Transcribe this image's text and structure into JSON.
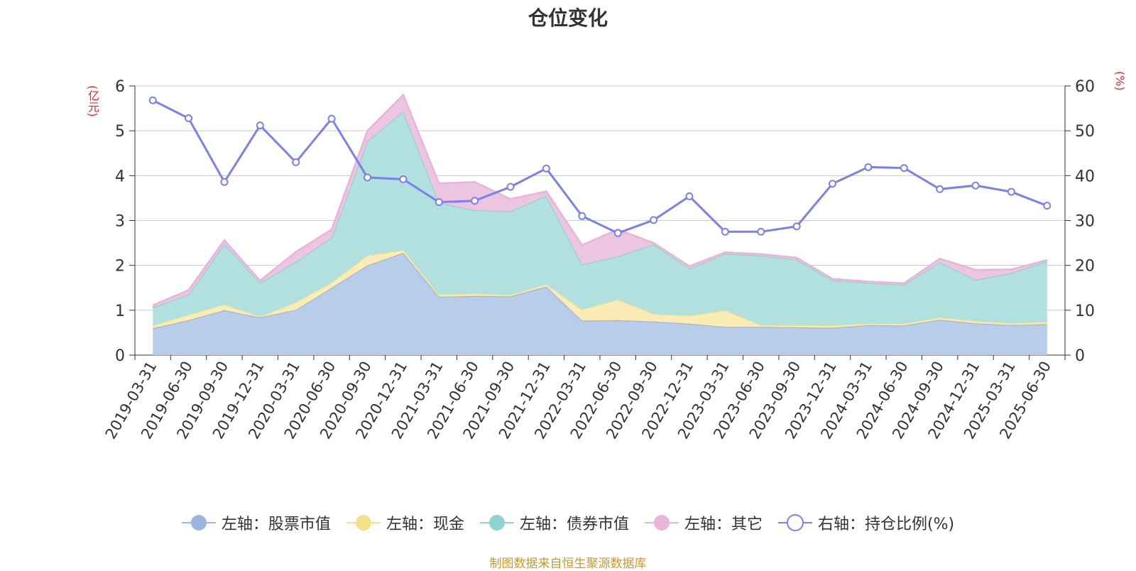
{
  "title": "仓位变化",
  "left_unit": "(亿元)",
  "right_unit": "(%)",
  "source": "制图数据来自恒生聚源数据库",
  "chart_data": {
    "type": "area",
    "categories": [
      "2019-03-31",
      "2019-06-30",
      "2019-09-30",
      "2019-12-31",
      "2020-03-31",
      "2020-06-30",
      "2020-09-30",
      "2020-12-31",
      "2021-03-31",
      "2021-06-30",
      "2021-09-30",
      "2021-12-31",
      "2022-03-31",
      "2022-06-30",
      "2022-09-30",
      "2022-12-31",
      "2023-03-31",
      "2023-06-30",
      "2023-09-30",
      "2023-12-31",
      "2024-03-31",
      "2024-06-30",
      "2024-09-30",
      "2024-12-31",
      "2025-03-31",
      "2025-06-30"
    ],
    "y_left": {
      "ylim": [
        0,
        6
      ],
      "ticks": [
        0,
        1,
        2,
        3,
        4,
        5,
        6
      ]
    },
    "y_right": {
      "ylim": [
        0,
        60
      ],
      "ticks": [
        0,
        10,
        20,
        30,
        40,
        50,
        60
      ]
    },
    "grid": true,
    "legend_position": "bottom",
    "series": [
      {
        "name": "左轴：股票市值",
        "axis": "left",
        "stacked": true,
        "color": "#9db6e0",
        "fill": "#b8cdea",
        "values": [
          0.6,
          0.78,
          1.0,
          0.84,
          1.01,
          1.5,
          2.0,
          2.28,
          1.3,
          1.32,
          1.31,
          1.53,
          0.77,
          0.78,
          0.75,
          0.7,
          0.63,
          0.63,
          0.62,
          0.61,
          0.67,
          0.66,
          0.79,
          0.71,
          0.67,
          0.69
        ]
      },
      {
        "name": "左轴：现金",
        "axis": "left",
        "stacked": true,
        "color": "#f5e08a",
        "fill": "#fbecb6",
        "values": [
          0.06,
          0.12,
          0.13,
          0.02,
          0.17,
          0.12,
          0.22,
          0.06,
          0.05,
          0.05,
          0.03,
          0.05,
          0.25,
          0.46,
          0.17,
          0.18,
          0.37,
          0.04,
          0.05,
          0.05,
          0.04,
          0.04,
          0.05,
          0.05,
          0.04,
          0.05
        ]
      },
      {
        "name": "左轴：债券市值",
        "axis": "left",
        "stacked": true,
        "color": "#8fd4d0",
        "fill": "#b2e0de",
        "values": [
          0.4,
          0.45,
          1.35,
          0.75,
          0.9,
          1.0,
          2.55,
          3.1,
          2.05,
          1.86,
          1.87,
          1.97,
          1.0,
          0.96,
          1.55,
          1.05,
          1.26,
          1.55,
          1.46,
          1.01,
          0.9,
          0.87,
          1.23,
          0.92,
          1.12,
          1.35
        ]
      },
      {
        "name": "左轴：其它",
        "axis": "left",
        "stacked": true,
        "color": "#e8b4d8",
        "fill": "#ecc6e1",
        "values": [
          0.05,
          0.1,
          0.08,
          0.05,
          0.22,
          0.18,
          0.23,
          0.36,
          0.43,
          0.63,
          0.27,
          0.1,
          0.43,
          0.6,
          0.03,
          0.05,
          0.03,
          0.03,
          0.04,
          0.03,
          0.03,
          0.03,
          0.08,
          0.22,
          0.08,
          0.03
        ]
      },
      {
        "name": "右轴：持仓比例(%)",
        "axis": "right",
        "type": "line",
        "color": "#7b7ff2",
        "values": [
          56.8,
          52.8,
          38.6,
          51.2,
          43.0,
          52.7,
          39.6,
          39.2,
          34.1,
          34.4,
          37.5,
          41.6,
          31.0,
          27.2,
          30.1,
          35.4,
          27.5,
          27.5,
          28.7,
          38.2,
          41.9,
          41.7,
          37.0,
          37.8,
          36.4,
          33.3
        ]
      }
    ]
  }
}
